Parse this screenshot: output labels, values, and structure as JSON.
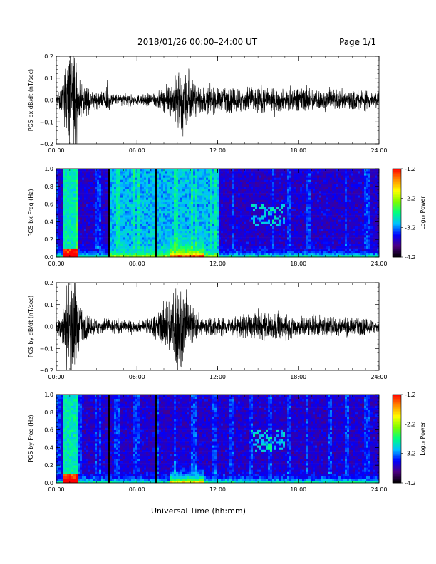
{
  "header": {
    "title": "2018/01/26  00:00–24:00 UT",
    "page": "Page 1/1"
  },
  "bottom_xlabel": "Universal Time (hh:mm)",
  "chart_data": [
    {
      "type": "line",
      "ylabel": "PG5 bx dB/dt (nT/sec)",
      "ylim": [
        -0.2,
        0.2
      ],
      "yticks": [
        "0.2",
        "0.1",
        "0.0",
        "−0.1",
        "−0.2"
      ],
      "xlim": [
        0,
        24
      ],
      "xticks": [
        "00:00",
        "06:00",
        "12:00",
        "18:00",
        "24:00"
      ],
      "series": [
        {
          "hours": [
            0.0,
            0.4,
            0.6,
            0.8,
            1.0,
            1.2,
            1.4,
            1.6,
            2.0,
            3.0,
            3.6,
            3.8,
            4.0,
            5.0,
            6.0,
            7.0,
            8.0,
            8.5,
            9.0,
            9.3,
            9.6,
            9.8,
            10.0,
            10.5,
            11.0,
            12.0,
            13.0,
            14.0,
            15.0,
            16.0,
            17.0,
            18.0,
            19.0,
            20.0,
            21.0,
            22.0,
            23.0,
            24.0
          ],
          "envelope": [
            0.02,
            0.05,
            0.09,
            0.2,
            0.2,
            0.2,
            0.2,
            0.08,
            0.05,
            0.03,
            0.03,
            0.08,
            0.02,
            0.025,
            0.02,
            0.025,
            0.04,
            0.06,
            0.1,
            0.14,
            0.16,
            0.12,
            0.08,
            0.05,
            0.05,
            0.045,
            0.045,
            0.05,
            0.05,
            0.045,
            0.04,
            0.045,
            0.045,
            0.04,
            0.04,
            0.04,
            0.04,
            0.03
          ]
        }
      ]
    },
    {
      "type": "heatmap",
      "ylabel": "PG5 bx Freq (Hz)",
      "ylim": [
        0,
        1
      ],
      "yticks": [
        "1.0",
        "0.8",
        "0.6",
        "0.4",
        "0.2",
        "0.0"
      ],
      "xlim": [
        0,
        24
      ],
      "xticks": [
        "00:00",
        "06:00",
        "12:00",
        "18:00",
        "24:00"
      ],
      "colorbar": {
        "label": "Log₁₀ Power",
        "range": [
          -4.2,
          -1.2
        ],
        "ticks": [
          "-1.2",
          "-2.2",
          "-3.2",
          "-4.2"
        ],
        "colors": [
          "#000000",
          "#4b0082",
          "#0000ff",
          "#00bfff",
          "#00ff80",
          "#7cfc00",
          "#ffff00",
          "#ff8c00",
          "#ff0000"
        ]
      },
      "features": {
        "data_gaps_hours": [
          3.9,
          7.4
        ],
        "high_background_hours": [
          4.0,
          12.0
        ],
        "enhanced_band_hours": [
          14.5,
          17.0
        ],
        "enhanced_band_freq": [
          0.35,
          0.6
        ]
      }
    },
    {
      "type": "line",
      "ylabel": "PG5 by dB/dt (nT/sec)",
      "ylim": [
        -0.2,
        0.2
      ],
      "yticks": [
        "0.2",
        "0.1",
        "0.0",
        "−0.1",
        "−0.2"
      ],
      "xlim": [
        0,
        24
      ],
      "xticks": [
        "00:00",
        "06:00",
        "12:00",
        "18:00",
        "24:00"
      ],
      "series": [
        {
          "hours": [
            0.0,
            0.4,
            0.6,
            0.8,
            1.0,
            1.2,
            1.4,
            1.6,
            2.0,
            3.0,
            4.0,
            5.0,
            6.0,
            7.0,
            7.5,
            8.0,
            8.5,
            9.0,
            9.3,
            9.6,
            10.0,
            10.5,
            11.0,
            12.0,
            13.0,
            14.0,
            15.0,
            16.0,
            17.0,
            18.0,
            19.0,
            20.0,
            21.0,
            22.0,
            23.0,
            24.0
          ],
          "envelope": [
            0.02,
            0.05,
            0.1,
            0.2,
            0.2,
            0.2,
            0.2,
            0.1,
            0.05,
            0.03,
            0.03,
            0.025,
            0.02,
            0.03,
            0.05,
            0.08,
            0.12,
            0.2,
            0.2,
            0.12,
            0.08,
            0.05,
            0.04,
            0.035,
            0.035,
            0.045,
            0.05,
            0.05,
            0.045,
            0.04,
            0.04,
            0.04,
            0.035,
            0.035,
            0.03,
            0.025
          ]
        }
      ]
    },
    {
      "type": "heatmap",
      "ylabel": "PG5 by Freq (Hz)",
      "ylim": [
        0,
        1
      ],
      "yticks": [
        "1.0",
        "0.8",
        "0.6",
        "0.4",
        "0.2",
        "0.0"
      ],
      "xlim": [
        0,
        24
      ],
      "xticks": [
        "00:00",
        "06:00",
        "12:00",
        "18:00",
        "24:00"
      ],
      "colorbar": {
        "label": "Log₁₀ Power",
        "range": [
          -4.2,
          -1.2
        ],
        "ticks": [
          "-1.2",
          "-2.2",
          "-3.2",
          "-4.2"
        ],
        "colors": [
          "#000000",
          "#4b0082",
          "#0000ff",
          "#00bfff",
          "#00ff80",
          "#7cfc00",
          "#ffff00",
          "#ff8c00",
          "#ff0000"
        ]
      },
      "features": {
        "data_gaps_hours": [
          3.9,
          7.4
        ],
        "high_background_hours": [],
        "enhanced_band_hours": [
          14.5,
          17.0
        ],
        "enhanced_band_freq": [
          0.35,
          0.6
        ]
      }
    }
  ]
}
